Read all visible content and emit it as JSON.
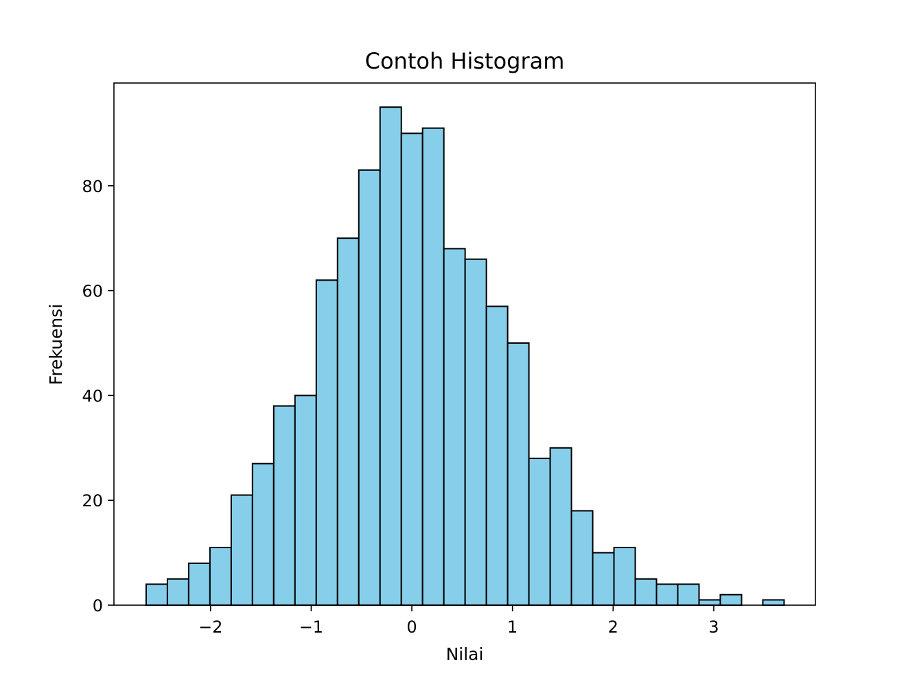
{
  "chart_data": {
    "type": "bar",
    "subtype": "histogram",
    "title": "Contoh Histogram",
    "xlabel": "Nilai",
    "ylabel": "Frekuensi",
    "bin_start": -2.64,
    "bin_width": 0.2113,
    "values": [
      4,
      5,
      8,
      11,
      21,
      27,
      38,
      40,
      62,
      70,
      83,
      95,
      90,
      91,
      68,
      66,
      57,
      50,
      28,
      30,
      18,
      10,
      11,
      5,
      4,
      4,
      1,
      2,
      0,
      1
    ],
    "xlim": [
      -2.96,
      4.01
    ],
    "ylim": [
      0,
      99.6
    ],
    "xticks": [
      -2,
      -1,
      0,
      1,
      2,
      3
    ],
    "xtick_labels": [
      "−2",
      "−1",
      "0",
      "1",
      "2",
      "3"
    ],
    "yticks": [
      0,
      20,
      40,
      60,
      80
    ],
    "ytick_labels": [
      "0",
      "20",
      "40",
      "60",
      "80"
    ],
    "bar_color": "#87ceeb",
    "edge_color": "#000000",
    "grid": false
  }
}
